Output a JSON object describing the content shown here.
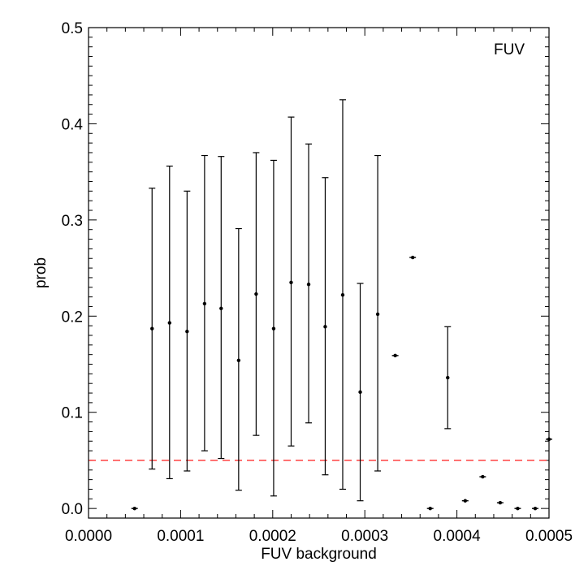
{
  "chart_data": {
    "type": "scatter",
    "title": "",
    "annotation": "FUV",
    "xlabel": "FUV background",
    "ylabel": "prob",
    "xlim": [
      0.0,
      0.0005
    ],
    "ylim": [
      -0.01,
      0.5
    ],
    "x_tick_labels": [
      "0.0000",
      "0.0001",
      "0.0002",
      "0.0003",
      "0.0004",
      "0.0005"
    ],
    "y_tick_labels": [
      "0.0",
      "0.1",
      "0.2",
      "0.3",
      "0.4",
      "0.5"
    ],
    "grid": false,
    "legend": "none",
    "reference_line": {
      "y": 0.05,
      "color": "#ff0000",
      "style": "dashed"
    },
    "series": [
      {
        "points": [
          {
            "x": 5e-05,
            "y": 0.0,
            "low": 0.0,
            "high": 0.0
          },
          {
            "x": 6.9e-05,
            "y": 0.187,
            "low": 0.041,
            "high": 0.333
          },
          {
            "x": 8.8e-05,
            "y": 0.193,
            "low": 0.031,
            "high": 0.356
          },
          {
            "x": 0.000107,
            "y": 0.184,
            "low": 0.039,
            "high": 0.33
          },
          {
            "x": 0.000126,
            "y": 0.213,
            "low": 0.06,
            "high": 0.367
          },
          {
            "x": 0.000144,
            "y": 0.208,
            "low": 0.052,
            "high": 0.366
          },
          {
            "x": 0.000163,
            "y": 0.154,
            "low": 0.019,
            "high": 0.291
          },
          {
            "x": 0.000182,
            "y": 0.223,
            "low": 0.076,
            "high": 0.37
          },
          {
            "x": 0.000201,
            "y": 0.187,
            "low": 0.013,
            "high": 0.362
          },
          {
            "x": 0.00022,
            "y": 0.235,
            "low": 0.065,
            "high": 0.407
          },
          {
            "x": 0.000239,
            "y": 0.233,
            "low": 0.089,
            "high": 0.379
          },
          {
            "x": 0.000257,
            "y": 0.189,
            "low": 0.035,
            "high": 0.344
          },
          {
            "x": 0.000276,
            "y": 0.222,
            "low": 0.02,
            "high": 0.425
          },
          {
            "x": 0.000295,
            "y": 0.121,
            "low": 0.008,
            "high": 0.234
          },
          {
            "x": 0.000314,
            "y": 0.202,
            "low": 0.039,
            "high": 0.367
          },
          {
            "x": 0.000333,
            "y": 0.159,
            "low": 0.159,
            "high": 0.159
          },
          {
            "x": 0.000352,
            "y": 0.261,
            "low": 0.261,
            "high": 0.261
          },
          {
            "x": 0.000371,
            "y": 0.0,
            "low": 0.0,
            "high": 0.0
          },
          {
            "x": 0.00039,
            "y": 0.136,
            "low": 0.083,
            "high": 0.189
          },
          {
            "x": 0.000409,
            "y": 0.008,
            "low": 0.008,
            "high": 0.008
          },
          {
            "x": 0.000428,
            "y": 0.033,
            "low": 0.033,
            "high": 0.033
          },
          {
            "x": 0.000447,
            "y": 0.006,
            "low": 0.006,
            "high": 0.006
          },
          {
            "x": 0.000466,
            "y": 0.0,
            "low": 0.0,
            "high": 0.0
          },
          {
            "x": 0.000485,
            "y": 0.0,
            "low": 0.0,
            "high": 0.0
          },
          {
            "x": 0.0005,
            "y": 0.072,
            "low": 0.072,
            "high": 0.072
          }
        ]
      }
    ]
  }
}
